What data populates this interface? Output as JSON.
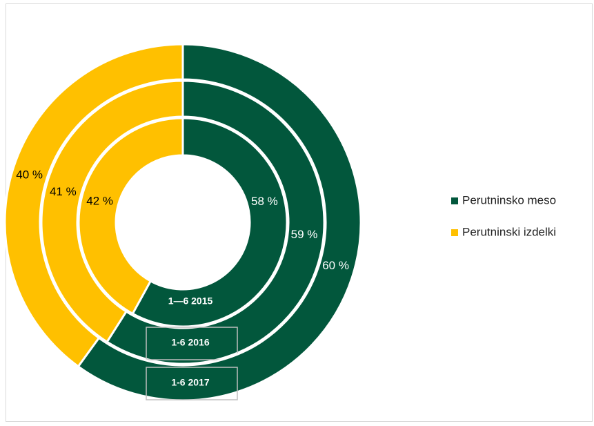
{
  "chart_data": {
    "type": "donut",
    "categories": [
      "Perutninsko meso",
      "Perutninski izdelki"
    ],
    "colors": [
      "#02573c",
      "#ffc000"
    ],
    "series": [
      {
        "name": "1—6 2015",
        "values": [
          58,
          42
        ],
        "value_labels": [
          "58 %",
          "42 %"
        ]
      },
      {
        "name": "1-6 2016",
        "values": [
          59,
          41
        ],
        "value_labels": [
          "59 %",
          "41 %"
        ]
      },
      {
        "name": "1-6 2017",
        "values": [
          60,
          40
        ],
        "value_labels": [
          "60 %",
          "40 %"
        ]
      }
    ],
    "legend": "right"
  }
}
